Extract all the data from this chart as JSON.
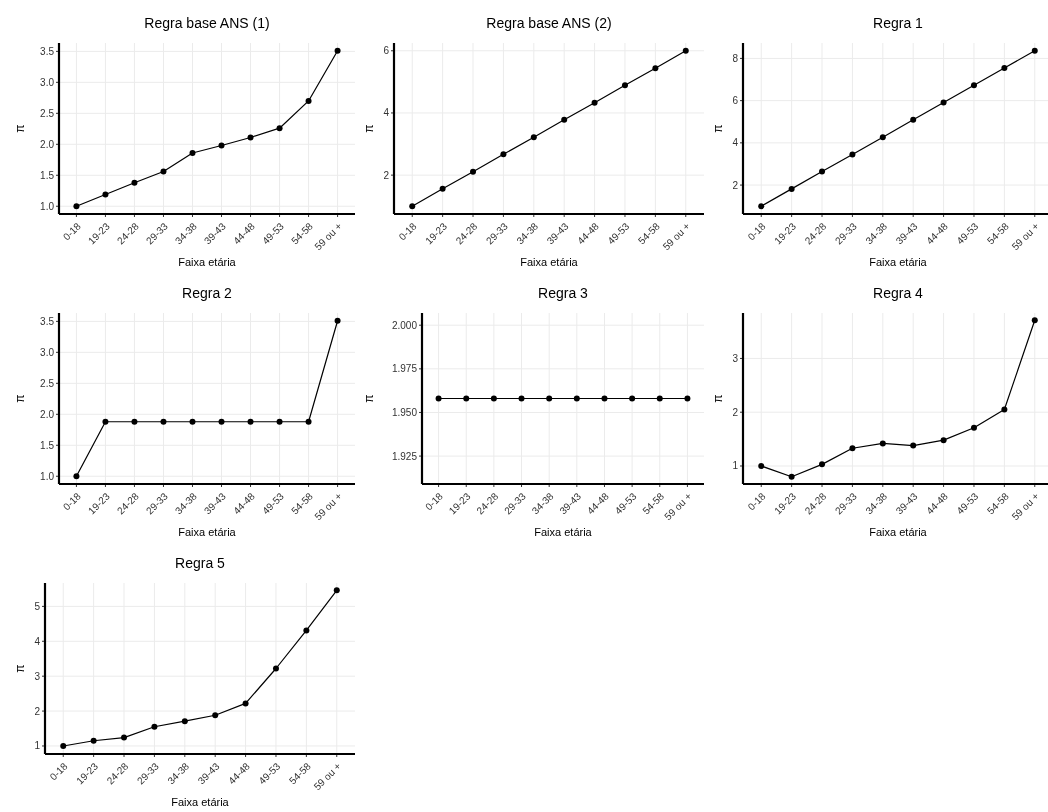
{
  "chart_data": [
    {
      "type": "line",
      "title": "Regra base ANS (1)",
      "xlabel": "Faixa etária",
      "ylabel": "π",
      "categories": [
        "0-18",
        "19-23",
        "24-28",
        "29-33",
        "34-38",
        "39-43",
        "44-48",
        "49-53",
        "54-58",
        "59 ou +"
      ],
      "values": [
        1.0,
        1.19,
        1.38,
        1.56,
        1.86,
        1.98,
        2.11,
        2.26,
        2.7,
        3.51
      ],
      "color": "#000000",
      "ylim": [
        0.875,
        3.635
      ],
      "yticks": [
        {
          "value": 1,
          "label": "1.0"
        },
        1.5,
        {
          "value": 2,
          "label": "2.0"
        },
        2.5,
        {
          "value": 3,
          "label": "3.0"
        },
        3.5
      ],
      "grid": true,
      "marker": "circle"
    },
    {
      "type": "line",
      "title": "Regra base ANS (2)",
      "xlabel": "Faixa etária",
      "ylabel": "π",
      "categories": [
        "0-18",
        "19-23",
        "24-28",
        "29-33",
        "34-38",
        "39-43",
        "44-48",
        "49-53",
        "54-58",
        "59 ou +"
      ],
      "values": [
        1.0,
        1.56,
        2.11,
        2.67,
        3.22,
        3.78,
        4.33,
        4.89,
        5.44,
        6.0
      ],
      "color": "#000000",
      "ylim": [
        0.75,
        6.25
      ],
      "yticks": [
        2,
        4,
        6
      ],
      "grid": true,
      "marker": "circle"
    },
    {
      "type": "line",
      "title": "Regra 1",
      "xlabel": "Faixa etária",
      "ylabel": "π",
      "categories": [
        "0-18",
        "19-23",
        "24-28",
        "29-33",
        "34-38",
        "39-43",
        "44-48",
        "49-53",
        "54-58",
        "59 ou +"
      ],
      "values": [
        1.0,
        1.82,
        2.64,
        3.45,
        4.27,
        5.09,
        5.91,
        6.73,
        7.55,
        8.36
      ],
      "color": "#000000",
      "ylim": [
        0.63,
        8.73
      ],
      "yticks": [
        2,
        4,
        6,
        8
      ],
      "grid": true,
      "marker": "circle"
    },
    {
      "type": "line",
      "title": "Regra 2",
      "xlabel": "Faixa etária",
      "ylabel": "π",
      "categories": [
        "0-18",
        "19-23",
        "24-28",
        "29-33",
        "34-38",
        "39-43",
        "44-48",
        "49-53",
        "54-58",
        "59 ou +"
      ],
      "values": [
        1.0,
        1.88,
        1.88,
        1.88,
        1.88,
        1.88,
        1.88,
        1.88,
        1.88,
        3.51
      ],
      "color": "#000000",
      "ylim": [
        0.875,
        3.635
      ],
      "yticks": [
        {
          "value": 1,
          "label": "1.0"
        },
        1.5,
        {
          "value": 2,
          "label": "2.0"
        },
        2.5,
        {
          "value": 3,
          "label": "3.0"
        },
        3.5
      ],
      "grid": true,
      "marker": "circle"
    },
    {
      "type": "line",
      "title": "Regra 3",
      "xlabel": "Faixa etária",
      "ylabel": "π",
      "categories": [
        "0-18",
        "19-23",
        "24-28",
        "29-33",
        "34-38",
        "39-43",
        "44-48",
        "49-53",
        "54-58",
        "59 ou +"
      ],
      "values": [
        1.958,
        1.958,
        1.958,
        1.958,
        1.958,
        1.958,
        1.958,
        1.958,
        1.958,
        1.958
      ],
      "color": "#000000",
      "ylim": [
        1.909,
        2.007
      ],
      "yticks": [
        1.925,
        {
          "value": 1.95,
          "label": "1.950"
        },
        1.975,
        {
          "value": 2,
          "label": "2.000"
        }
      ],
      "grid": true,
      "marker": "circle"
    },
    {
      "type": "line",
      "title": "Regra 4",
      "xlabel": "Faixa etária",
      "ylabel": "π",
      "categories": [
        "0-18",
        "19-23",
        "24-28",
        "29-33",
        "34-38",
        "39-43",
        "44-48",
        "49-53",
        "54-58",
        "59 ou +"
      ],
      "values": [
        1.0,
        0.8,
        1.03,
        1.33,
        1.42,
        1.38,
        1.48,
        1.71,
        2.05,
        3.71
      ],
      "color": "#000000",
      "ylim": [
        0.665,
        3.845
      ],
      "yticks": [
        1,
        2,
        3
      ],
      "grid": true,
      "marker": "circle"
    },
    {
      "type": "line",
      "title": "Regra 5",
      "xlabel": "Faixa etária",
      "ylabel": "π",
      "categories": [
        "0-18",
        "19-23",
        "24-28",
        "29-33",
        "34-38",
        "39-43",
        "44-48",
        "49-53",
        "54-58",
        "59 ou +"
      ],
      "values": [
        1.0,
        1.15,
        1.24,
        1.55,
        1.71,
        1.88,
        2.22,
        3.22,
        4.31,
        5.46
      ],
      "color": "#000000",
      "ylim": [
        0.77,
        5.67
      ],
      "yticks": [
        1,
        2,
        3,
        4,
        5
      ],
      "grid": true,
      "marker": "circle"
    }
  ]
}
